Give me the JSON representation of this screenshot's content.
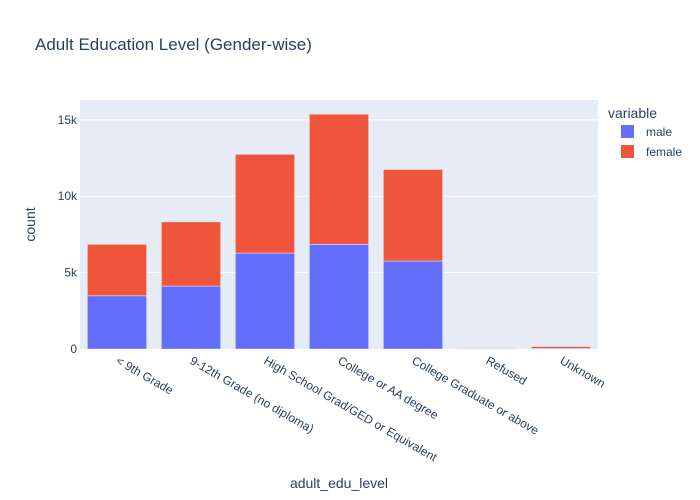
{
  "chart_data": {
    "type": "bar",
    "stacked": true,
    "title": "Adult Education Level (Gender-wise)",
    "xlabel": "adult_edu_level",
    "ylabel": "count",
    "categories": [
      "< 9th Grade",
      "9-12th Grade (no diploma)",
      "High School Grad/GED or Equivalent",
      "College or AA degree",
      "College Graduate or above",
      "Refused",
      "Unknown"
    ],
    "series": [
      {
        "name": "male",
        "color": "#636efa",
        "values": [
          3480,
          4120,
          6280,
          6850,
          5760,
          40,
          50
        ]
      },
      {
        "name": "female",
        "color": "#ef553b",
        "values": [
          3370,
          4200,
          6460,
          8520,
          5990,
          30,
          110
        ]
      }
    ],
    "ylim": [
      0,
      16300
    ],
    "yticks": [
      0,
      5000,
      10000,
      15000
    ],
    "ytick_labels": [
      "0",
      "5k",
      "10k",
      "15k"
    ],
    "legend": {
      "title": "variable",
      "placement": "right"
    },
    "grid": true,
    "plot_bg": "#e5ecf6"
  }
}
